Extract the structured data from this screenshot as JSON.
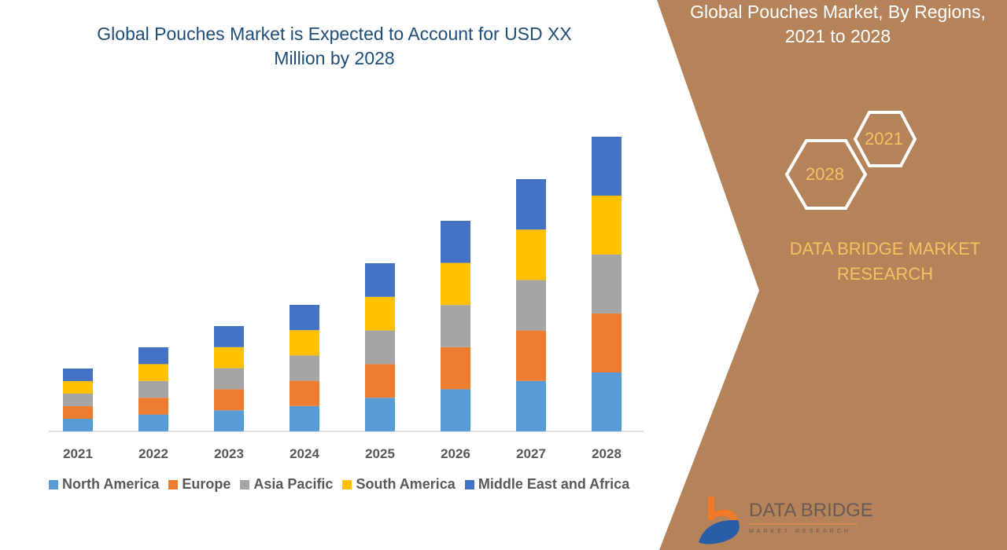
{
  "header": {
    "title": "Global Pouches Market is Expected to Account for USD XX Million by 2028"
  },
  "side_panel": {
    "title": "Global Pouches Market, By Regions, 2021 to 2028",
    "hex_start": "2021",
    "hex_end": "2028",
    "brand": "DATA BRIDGE MARKET RESEARCH",
    "logo_text": "DATA BRIDGE",
    "logo_sub": "MARKET RESEARCH"
  },
  "colors": {
    "panel": "#b5835a",
    "title": "#1f4e79"
  },
  "chart_data": {
    "type": "bar",
    "stacked": true,
    "title": "Global Pouches Market is Expected to Account for USD XX Million by 2028",
    "xlabel": "",
    "ylabel": "",
    "legend_position": "bottom",
    "grid": false,
    "categories": [
      "2021",
      "2022",
      "2023",
      "2024",
      "2025",
      "2026",
      "2027",
      "2028"
    ],
    "series": [
      {
        "name": "North America",
        "color": "#5b9bd5",
        "values": [
          16,
          21.4,
          26.8,
          32.2,
          42.8,
          53.6,
          64.2,
          75
        ]
      },
      {
        "name": "Europe",
        "color": "#ed7d31",
        "values": [
          16,
          21.4,
          26.8,
          32.2,
          42.8,
          53.6,
          64.2,
          75
        ]
      },
      {
        "name": "Asia Pacific",
        "color": "#a5a5a5",
        "values": [
          16,
          21.4,
          26.8,
          32.2,
          42.8,
          53.6,
          64.2,
          75
        ]
      },
      {
        "name": "South America",
        "color": "#ffc000",
        "values": [
          16,
          21.4,
          26.8,
          32.2,
          42.8,
          53.6,
          64.2,
          75
        ]
      },
      {
        "name": "Middle East and Africa",
        "color": "#4472c4",
        "values": [
          16,
          21.4,
          26.8,
          32.2,
          42.8,
          53.6,
          64.2,
          75
        ]
      }
    ]
  }
}
